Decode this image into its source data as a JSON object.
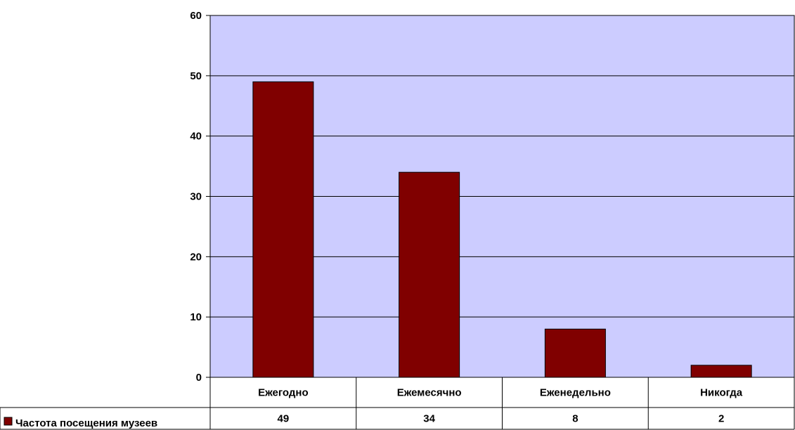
{
  "chart_data": {
    "type": "bar",
    "categories": [
      "Ежегодно",
      "Ежемесячно",
      "Еженедельно",
      "Никогда"
    ],
    "series": [
      {
        "name": "Частота посещения музеев",
        "values": [
          49,
          34,
          8,
          2
        ],
        "color": "#800000"
      }
    ],
    "ylim": [
      0,
      60
    ],
    "yticks": [
      0,
      10,
      20,
      30,
      40,
      50,
      60
    ],
    "grid": true,
    "plot_background": "#ccccff",
    "data_table": true,
    "legend_position": "data-table-left"
  }
}
